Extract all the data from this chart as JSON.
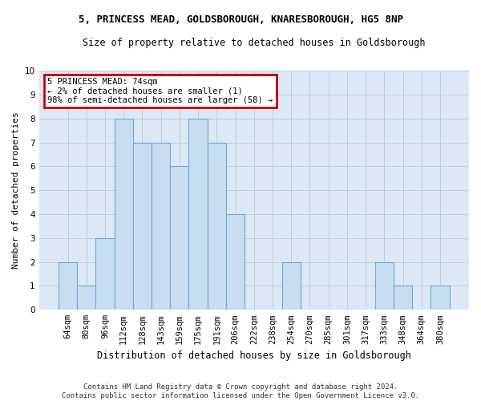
{
  "title1": "5, PRINCESS MEAD, GOLDSBOROUGH, KNARESBOROUGH, HG5 8NP",
  "title2": "Size of property relative to detached houses in Goldsborough",
  "xlabel": "Distribution of detached houses by size in Goldsborough",
  "ylabel": "Number of detached properties",
  "categories": [
    "64sqm",
    "80sqm",
    "96sqm",
    "112sqm",
    "128sqm",
    "143sqm",
    "159sqm",
    "175sqm",
    "191sqm",
    "206sqm",
    "222sqm",
    "238sqm",
    "254sqm",
    "270sqm",
    "285sqm",
    "301sqm",
    "317sqm",
    "333sqm",
    "348sqm",
    "364sqm",
    "380sqm"
  ],
  "values": [
    2,
    1,
    3,
    8,
    7,
    7,
    6,
    8,
    7,
    4,
    0,
    0,
    2,
    0,
    0,
    0,
    0,
    2,
    1,
    0,
    1
  ],
  "bar_color": "#c9ddf0",
  "bar_edge_color": "#6aaad4",
  "annotation_text": "5 PRINCESS MEAD: 74sqm\n← 2% of detached houses are smaller (1)\n98% of semi-detached houses are larger (58) →",
  "box_edge_color": "#cc0000",
  "ylim": [
    0,
    10
  ],
  "yticks": [
    0,
    1,
    2,
    3,
    4,
    5,
    6,
    7,
    8,
    9,
    10
  ],
  "footer": "Contains HM Land Registry data © Crown copyright and database right 2024.\nContains public sector information licensed under the Open Government Licence v3.0.",
  "fig_bg_color": "#ffffff",
  "plot_bg_color": "#dce8f5",
  "grid_color": "#b8cfe0",
  "title1_fontsize": 9,
  "title2_fontsize": 8.5,
  "ylabel_fontsize": 8,
  "xlabel_fontsize": 8.5,
  "footer_fontsize": 6.5,
  "ann_fontsize": 7.5,
  "tick_fontsize": 7.5
}
